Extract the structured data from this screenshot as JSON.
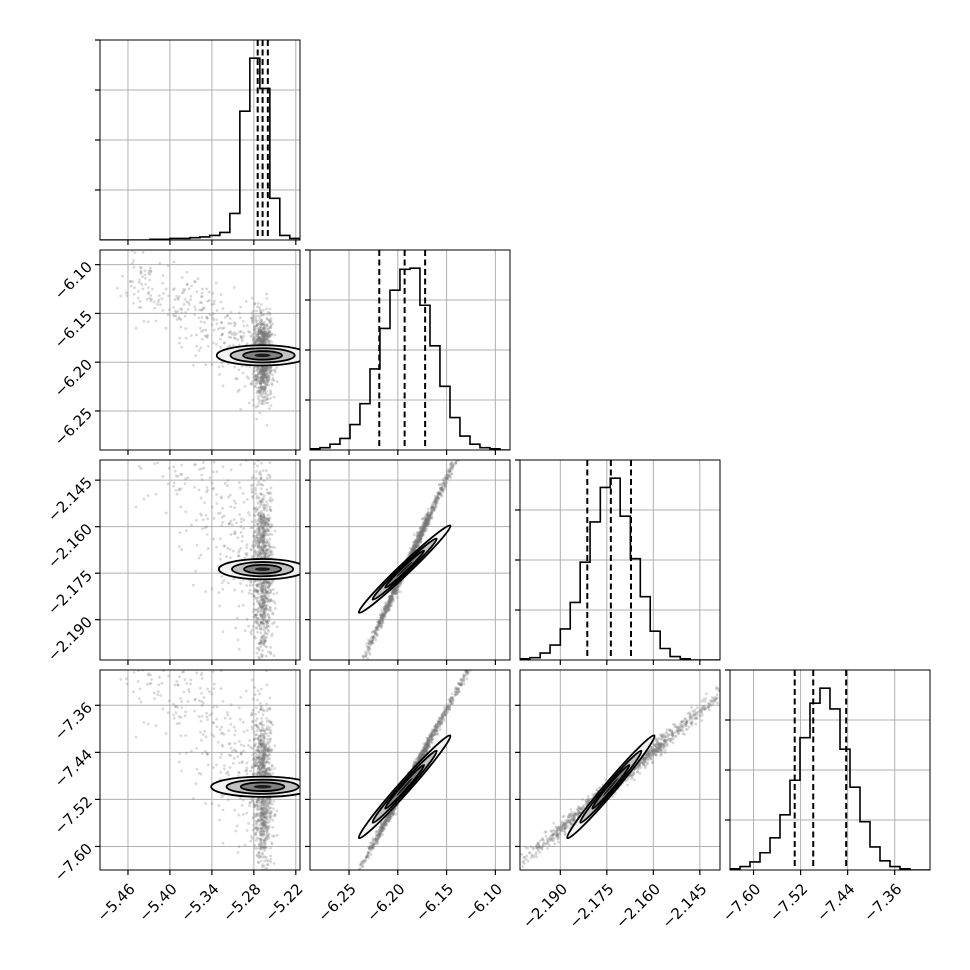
{
  "chart_data": {
    "type": "scatter",
    "title": "",
    "parameters": [
      {
        "tick_labels": [
          "−5.46",
          "−5.40",
          "−5.34",
          "−5.28",
          "−5.22"
        ],
        "ticks": [
          -5.46,
          -5.4,
          -5.34,
          -5.28,
          -5.22
        ],
        "range": [
          -5.5,
          -5.214
        ],
        "quantiles": [
          -5.2745,
          -5.2675,
          -5.26
        ],
        "hist_bins": [
          -5.5,
          -5.4857,
          -5.4714,
          -5.4571,
          -5.4429,
          -5.4286,
          -5.4143,
          -5.4,
          -5.3857,
          -5.3714,
          -5.3571,
          -5.3429,
          -5.3286,
          -5.3143,
          -5.3,
          -5.2857,
          -5.2714,
          -5.2571,
          -5.2429,
          -5.2286,
          -5.214
        ],
        "hist_counts": [
          0,
          0,
          0,
          0,
          0,
          1,
          1,
          2,
          2,
          3,
          4,
          6,
          10,
          35,
          170,
          240,
          200,
          55,
          6,
          2
        ]
      },
      {
        "tick_labels": [
          "−6.25",
          "−6.20",
          "−6.15",
          "−6.10"
        ],
        "ticks": [
          -6.25,
          -6.2,
          -6.15,
          -6.1
        ],
        "range": [
          -6.29,
          -6.085
        ],
        "quantiles": [
          -6.219,
          -6.193,
          -6.172
        ],
        "hist_bins": [
          -6.29,
          -6.2798,
          -6.2695,
          -6.2593,
          -6.249,
          -6.2388,
          -6.2285,
          -6.2183,
          -6.208,
          -6.1978,
          -6.1875,
          -6.1773,
          -6.167,
          -6.1568,
          -6.1465,
          -6.1363,
          -6.126,
          -6.1158,
          -6.1055,
          -6.0953,
          -6.085
        ],
        "hist_counts": [
          1,
          2,
          5,
          10,
          22,
          40,
          70,
          105,
          138,
          156,
          157,
          125,
          90,
          55,
          28,
          12,
          5,
          2,
          1,
          0
        ]
      },
      {
        "tick_labels": [
          "−2.190",
          "−2.175",
          "−2.160",
          "−2.145"
        ],
        "ticks": [
          -2.19,
          -2.175,
          -2.16,
          -2.145
        ],
        "range": [
          -2.203,
          -2.1385
        ],
        "quantiles": [
          -2.1813,
          -2.1737,
          -2.1672
        ],
        "hist_bins": [
          -2.203,
          -2.1998,
          -2.1965,
          -2.1933,
          -2.19,
          -2.1868,
          -2.1836,
          -2.1804,
          -2.1771,
          -2.1739,
          -2.1707,
          -2.1674,
          -2.1642,
          -2.161,
          -2.1578,
          -2.1546,
          -2.1513,
          -2.1481,
          -2.1449,
          -2.1417,
          -2.1385
        ],
        "hist_counts": [
          1,
          2,
          6,
          13,
          27,
          50,
          85,
          120,
          150,
          158,
          125,
          88,
          55,
          25,
          10,
          3,
          1,
          0,
          0,
          0
        ]
      },
      {
        "tick_labels": [
          "−7.60",
          "−7.52",
          "−7.44",
          "−7.36"
        ],
        "ticks": [
          -7.6,
          -7.52,
          -7.44,
          -7.36
        ],
        "range": [
          -7.64,
          -7.3
        ],
        "quantiles": [
          -7.53,
          -7.4985,
          -7.4425
        ],
        "hist_bins": [
          -7.64,
          -7.623,
          -7.606,
          -7.589,
          -7.572,
          -7.555,
          -7.538,
          -7.521,
          -7.504,
          -7.487,
          -7.47,
          -7.453,
          -7.436,
          -7.419,
          -7.402,
          -7.385,
          -7.368,
          -7.351,
          -7.334,
          -7.317,
          -7.3
        ],
        "hist_counts": [
          1,
          3,
          7,
          15,
          28,
          48,
          78,
          115,
          145,
          158,
          140,
          105,
          72,
          42,
          20,
          8,
          3,
          1,
          0,
          0
        ]
      }
    ]
  }
}
